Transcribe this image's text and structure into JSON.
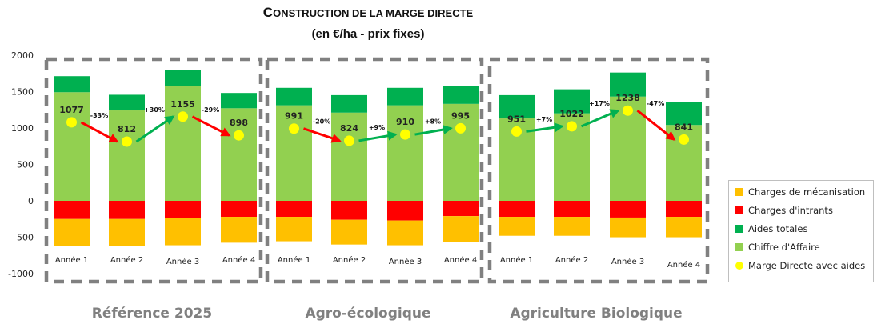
{
  "title": {
    "line1_first": "C",
    "line1_rest": "onstruction de la marge directe",
    "line2": "(en €/ha - prix fixes)"
  },
  "chart_data": {
    "type": "bar",
    "stacked": true,
    "ylim": [
      -1000,
      2000
    ],
    "yticks": [
      -1000,
      -500,
      0,
      500,
      1000,
      1500,
      2000
    ],
    "groups": [
      {
        "name": "Référence 2025",
        "categories": [
          "Année 1",
          "Année 2",
          "Année 3",
          "Année 4"
        ]
      },
      {
        "name": "Agro-écologique",
        "categories": [
          "Année 1",
          "Année 2",
          "Année 3",
          "Année 4"
        ]
      },
      {
        "name": "Agriculture Biologique",
        "categories": [
          "Année 1",
          "Année 2",
          "Année 3",
          "Année 4"
        ]
      }
    ],
    "series": [
      {
        "name": "Charges de mécanisation",
        "color": "#ffc000",
        "values": [
          [
            -370,
            -370,
            -370,
            -355
          ],
          [
            -335,
            -340,
            -340,
            -350
          ],
          [
            -260,
            -260,
            -270,
            -280
          ]
        ]
      },
      {
        "name": "Charges d'intrants",
        "color": "#ff0000",
        "values": [
          [
            -250,
            -250,
            -240,
            -220
          ],
          [
            -220,
            -260,
            -270,
            -210
          ],
          [
            -220,
            -220,
            -230,
            -220
          ]
        ]
      },
      {
        "name": "Aides totales",
        "color": "#00b050",
        "values": [
          [
            220,
            215,
            220,
            210
          ],
          [
            240,
            240,
            240,
            240
          ],
          [
            320,
            330,
            330,
            320
          ]
        ]
      },
      {
        "name": "Chiffre d'Affaire",
        "color": "#92d050",
        "values": [
          [
            1490,
            1240,
            1580,
            1270
          ],
          [
            1310,
            1210,
            1310,
            1330
          ],
          [
            1130,
            1200,
            1430,
            1040
          ]
        ]
      }
    ],
    "marge": {
      "name": "Marge Directe avec aides",
      "color": "#ffff00",
      "values": [
        [
          1077,
          812,
          1155,
          898
        ],
        [
          991,
          824,
          910,
          995
        ],
        [
          951,
          1022,
          1238,
          841
        ]
      ]
    },
    "changes": [
      [
        "-33%",
        "+30%",
        "-29%"
      ],
      [
        "-20%",
        "+9%",
        "+8%"
      ],
      [
        "+7%",
        "+17%",
        "-47%"
      ]
    ],
    "colors": {
      "up": "#00b050",
      "down": "#ff0000",
      "frame": "#808080"
    }
  },
  "legend": [
    {
      "label": "Charges de mécanisation",
      "color": "#ffc000",
      "shape": "square"
    },
    {
      "label": "Charges d'intrants",
      "color": "#ff0000",
      "shape": "square"
    },
    {
      "label": "Aides totales",
      "color": "#00b050",
      "shape": "square"
    },
    {
      "label": "Chiffre d'Affaire",
      "color": "#92d050",
      "shape": "square"
    },
    {
      "label": "Marge Directe avec aides",
      "color": "#ffff00",
      "shape": "circle"
    }
  ]
}
